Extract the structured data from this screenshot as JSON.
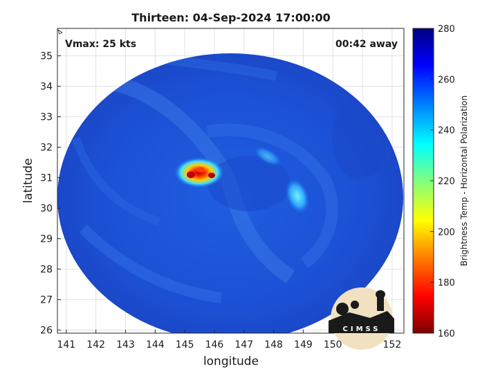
{
  "title": "Thirteen: 04-Sep-2024 17:00:00",
  "overlay": {
    "vmax": "Vmax: 25 kts",
    "away": "00:42 away"
  },
  "axes": {
    "xlabel": "longitude",
    "ylabel": "latitude",
    "xlim": [
      140.7,
      152.4
    ],
    "ylim": [
      25.9,
      35.9
    ],
    "xticks": [
      "141",
      "142",
      "143",
      "144",
      "145",
      "146",
      "147",
      "148",
      "149",
      "150",
      "151",
      "152"
    ],
    "yticks": [
      "26",
      "27",
      "28",
      "29",
      "30",
      "31",
      "32",
      "33",
      "34",
      "35"
    ],
    "grid": true
  },
  "colorbar": {
    "label": "Brightness Temp - Horizontal Polarization",
    "range": [
      160,
      280
    ],
    "ticks": [
      "160",
      "180",
      "200",
      "220",
      "240",
      "260",
      "280"
    ],
    "colors": [
      "#7f0000",
      "#ff0000",
      "#ff8000",
      "#ffff00",
      "#80ff80",
      "#00ffff",
      "#0080ff",
      "#0000ff",
      "#00007f"
    ],
    "placement": "right"
  },
  "logo": {
    "text": "CIMSS"
  },
  "image": {
    "background_color": "#1e55d8",
    "features": [
      {
        "name": "cold-core",
        "lon": 145.3,
        "lat": 31.1,
        "min_temp": 170
      },
      {
        "name": "rain-band-east",
        "lon": 148.8,
        "lat": 30.4,
        "min_temp": 232
      },
      {
        "name": "band-northeast",
        "lon": 147.8,
        "lat": 31.7,
        "min_temp": 240
      }
    ]
  }
}
